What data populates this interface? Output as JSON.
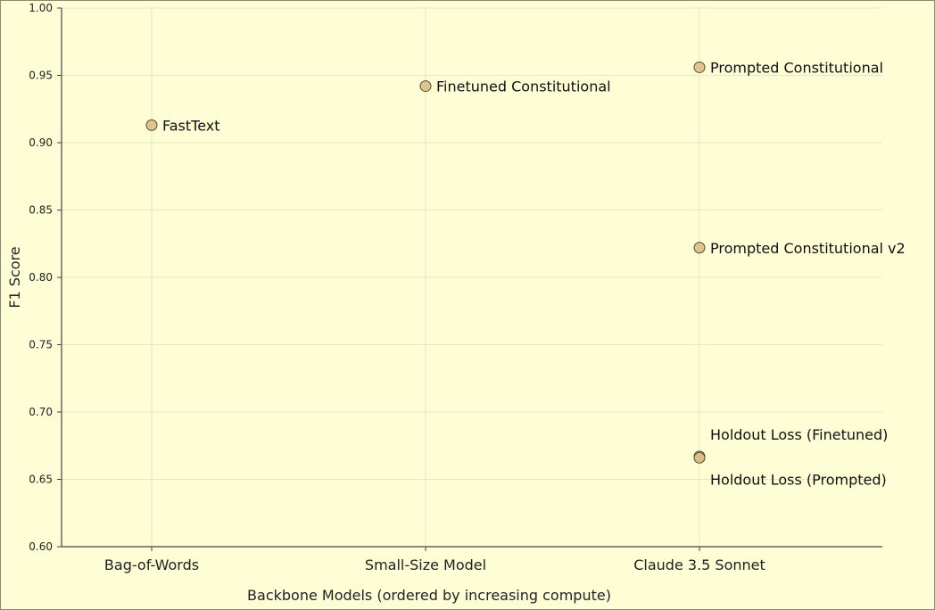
{
  "chart_data": {
    "type": "scatter",
    "title": "",
    "xlabel": "Backbone Models (ordered by increasing compute)",
    "ylabel": "F1 Score",
    "categories": [
      "Bag-of-Words",
      "Small-Size Model",
      "Claude 3.5 Sonnet"
    ],
    "ylim": [
      0.6,
      1.0
    ],
    "yticks": [
      "0.60",
      "0.65",
      "0.70",
      "0.75",
      "0.80",
      "0.85",
      "0.90",
      "0.95",
      "1.00"
    ],
    "grid": true,
    "legend": "none",
    "points": [
      {
        "label": "FastText",
        "category": "Bag-of-Words",
        "y": 0.913,
        "label_pos": "right"
      },
      {
        "label": "Finetuned Constitutional",
        "category": "Small-Size Model",
        "y": 0.942,
        "label_pos": "right"
      },
      {
        "label": "Prompted Constitutional",
        "category": "Claude 3.5 Sonnet",
        "y": 0.956,
        "label_pos": "right"
      },
      {
        "label": "Prompted Constitutional v2",
        "category": "Claude 3.5 Sonnet",
        "y": 0.822,
        "label_pos": "right"
      },
      {
        "label": "Holdout Loss (Finetuned)",
        "category": "Claude 3.5 Sonnet",
        "y": 0.667,
        "label_pos": "above-right"
      },
      {
        "label": "Holdout Loss (Prompted)",
        "category": "Claude 3.5 Sonnet",
        "y": 0.666,
        "label_pos": "below-right"
      }
    ],
    "colors": {
      "background": "#fdfdd6",
      "marker_fill": "#d8bf8a",
      "marker_edge": "#5a4a2a",
      "grid": "#e6e6c8",
      "axis": "#444444"
    }
  }
}
